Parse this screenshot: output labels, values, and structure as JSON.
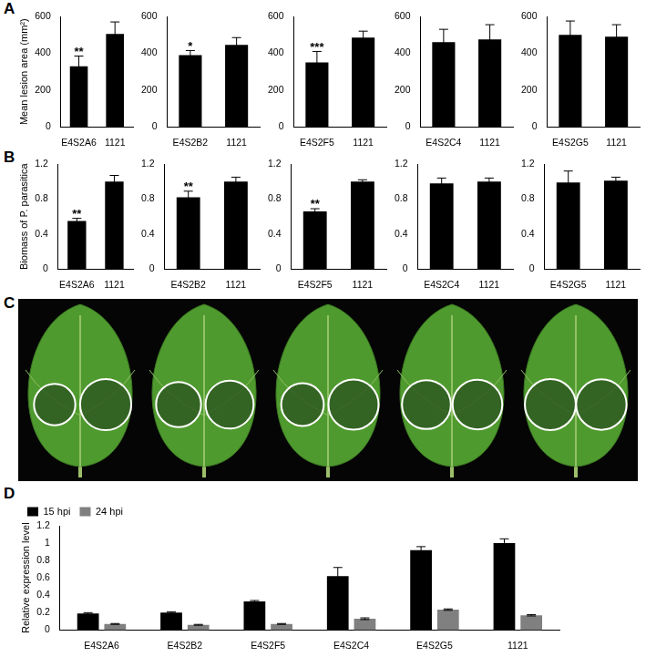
{
  "panel_labels": [
    "A",
    "B",
    "C",
    "D"
  ],
  "chart_data": [
    {
      "panel": "A",
      "type": "bar",
      "y_label": "Mean lesion area (mm²)",
      "categories": [
        "E4S2A6",
        "1121"
      ],
      "values": [
        330,
        505
      ],
      "errors": [
        55,
        65
      ],
      "color": "#000000",
      "ylim": [
        0,
        600
      ],
      "yticks": [
        0,
        200,
        400,
        600
      ],
      "grid": false,
      "annotations": [
        {
          "category": "E4S2A6",
          "text": "**"
        }
      ]
    },
    {
      "panel": "A",
      "type": "bar",
      "categories": [
        "E4S2B2",
        "1121"
      ],
      "values": [
        390,
        445
      ],
      "errors": [
        25,
        40
      ],
      "color": "#000000",
      "ylim": [
        0,
        600
      ],
      "yticks": [
        0,
        200,
        400,
        600
      ],
      "grid": false,
      "annotations": [
        {
          "category": "E4S2B2",
          "text": "*"
        }
      ]
    },
    {
      "panel": "A",
      "type": "bar",
      "categories": [
        "E4S2F5",
        "1121"
      ],
      "values": [
        350,
        485
      ],
      "errors": [
        60,
        35
      ],
      "color": "#000000",
      "ylim": [
        0,
        600
      ],
      "yticks": [
        0,
        200,
        400,
        600
      ],
      "grid": false,
      "annotations": [
        {
          "category": "E4S2F5",
          "text": "***"
        }
      ]
    },
    {
      "panel": "A",
      "type": "bar",
      "categories": [
        "E4S2C4",
        "1121"
      ],
      "values": [
        460,
        475
      ],
      "errors": [
        70,
        80
      ],
      "color": "#000000",
      "ylim": [
        0,
        600
      ],
      "yticks": [
        0,
        200,
        400,
        600
      ],
      "grid": false
    },
    {
      "panel": "A",
      "type": "bar",
      "categories": [
        "E4S2G5",
        "1121"
      ],
      "values": [
        500,
        490
      ],
      "errors": [
        75,
        65
      ],
      "color": "#000000",
      "ylim": [
        0,
        600
      ],
      "yticks": [
        0,
        200,
        400,
        600
      ],
      "grid": false
    },
    {
      "panel": "B",
      "type": "bar",
      "y_label": "Biomass of P. parasitica",
      "categories": [
        "E4S2A6",
        "1121"
      ],
      "values": [
        0.55,
        1.0
      ],
      "errors": [
        0.03,
        0.07
      ],
      "color": "#000000",
      "ylim": [
        0,
        1.2
      ],
      "yticks": [
        0,
        0.4,
        0.8,
        1.2
      ],
      "grid": false,
      "annotations": [
        {
          "category": "E4S2A6",
          "text": "**"
        }
      ]
    },
    {
      "panel": "B",
      "type": "bar",
      "categories": [
        "E4S2B2",
        "1121"
      ],
      "values": [
        0.82,
        1.0
      ],
      "errors": [
        0.07,
        0.05
      ],
      "color": "#000000",
      "ylim": [
        0,
        1.2
      ],
      "yticks": [
        0,
        0.4,
        0.8,
        1.2
      ],
      "grid": false,
      "annotations": [
        {
          "category": "E4S2B2",
          "text": "**"
        }
      ]
    },
    {
      "panel": "B",
      "type": "bar",
      "categories": [
        "E4S2F5",
        "1121"
      ],
      "values": [
        0.66,
        1.0
      ],
      "errors": [
        0.03,
        0.02
      ],
      "color": "#000000",
      "ylim": [
        0,
        1.2
      ],
      "yticks": [
        0,
        0.4,
        0.8,
        1.2
      ],
      "grid": false,
      "annotations": [
        {
          "category": "E4S2F5",
          "text": "**"
        }
      ]
    },
    {
      "panel": "B",
      "type": "bar",
      "categories": [
        "E4S2C4",
        "1121"
      ],
      "values": [
        0.98,
        1.0
      ],
      "errors": [
        0.06,
        0.04
      ],
      "color": "#000000",
      "ylim": [
        0,
        1.2
      ],
      "yticks": [
        0,
        0.4,
        0.8,
        1.2
      ],
      "grid": false
    },
    {
      "panel": "B",
      "type": "bar",
      "categories": [
        "E4S2G5",
        "1121"
      ],
      "values": [
        0.99,
        1.01
      ],
      "errors": [
        0.13,
        0.04
      ],
      "color": "#000000",
      "ylim": [
        0,
        1.2
      ],
      "yticks": [
        0,
        0.4,
        0.8,
        1.2
      ],
      "grid": false
    },
    {
      "panel": "D",
      "type": "bar",
      "y_label": "Relative expression level",
      "categories": [
        "E4S2A6",
        "E4S2B2",
        "E4S2F5",
        "E4S2C4",
        "E4S2G5",
        "1121"
      ],
      "series": [
        {
          "name": "15 hpi",
          "color": "#000000",
          "values": [
            0.19,
            0.2,
            0.33,
            0.62,
            0.92,
            1.0
          ],
          "errors": [
            0.01,
            0.01,
            0.01,
            0.1,
            0.04,
            0.05
          ]
        },
        {
          "name": "24 hpi",
          "color": "#808080",
          "values": [
            0.07,
            0.06,
            0.07,
            0.13,
            0.235,
            0.17
          ],
          "errors": [
            0.005,
            0.005,
            0.005,
            0.01,
            0.008,
            0.008
          ]
        }
      ],
      "ylim": [
        0,
        1.2
      ],
      "yticks": [
        0,
        0.2,
        0.4,
        0.6,
        0.8,
        1,
        1.2
      ],
      "grid": false,
      "legend": "top-left"
    }
  ]
}
